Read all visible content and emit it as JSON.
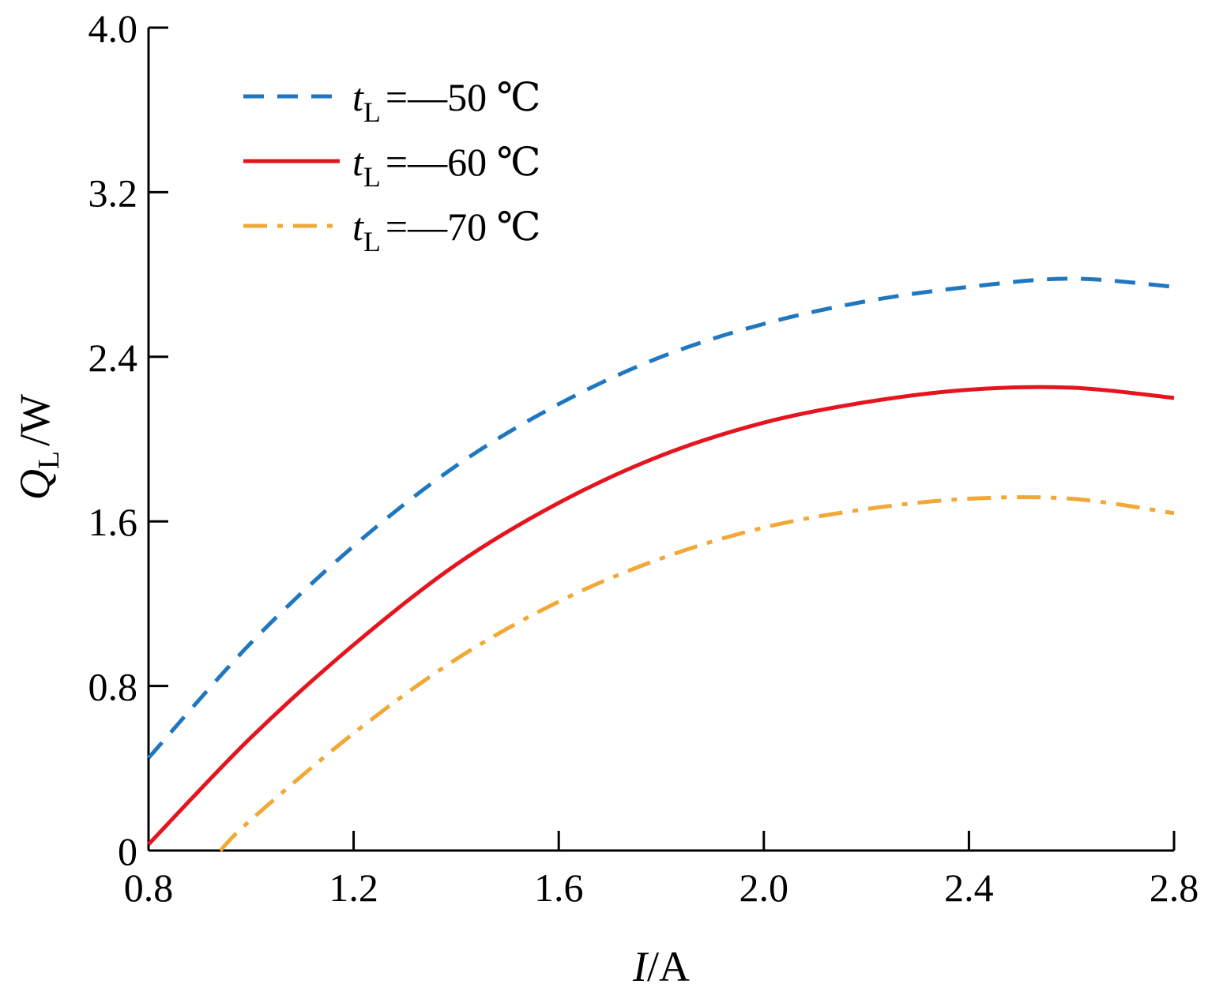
{
  "chart_data": {
    "type": "line",
    "title": "",
    "xlabel": {
      "var": "I",
      "unit": "A",
      "sep": "/"
    },
    "ylabel": {
      "var": "Q",
      "sub": "L",
      "unit": "W",
      "sep": "/"
    },
    "xlim": [
      0.8,
      2.8
    ],
    "ylim": [
      0,
      4.0
    ],
    "xticks": [
      0.8,
      1.2,
      1.6,
      2.0,
      2.4,
      2.8
    ],
    "xtick_labels": [
      "0.8",
      "1.2",
      "1.6",
      "2.0",
      "2.4",
      "2.8"
    ],
    "yticks": [
      0,
      0.8,
      1.6,
      2.4,
      3.2,
      4.0
    ],
    "ytick_labels": [
      "0",
      "0.8",
      "1.6",
      "2.4",
      "3.2",
      "4.0"
    ],
    "grid": false,
    "legend_position": "top-left",
    "series": [
      {
        "name": "tL = —50 ℃",
        "label_var": "t",
        "label_sub": "L",
        "label_rest": "=—50 ℃",
        "color": "#1f77c0",
        "style": "dashed",
        "x": [
          0.8,
          1.0,
          1.2,
          1.4,
          1.6,
          1.8,
          2.0,
          2.2,
          2.4,
          2.6,
          2.8
        ],
        "y": [
          0.45,
          1.01,
          1.48,
          1.87,
          2.17,
          2.4,
          2.56,
          2.67,
          2.74,
          2.78,
          2.74
        ]
      },
      {
        "name": "tL = —60 ℃",
        "label_var": "t",
        "label_sub": "L",
        "label_rest": "=—60 ℃",
        "color": "#e5151f",
        "style": "solid",
        "x": [
          0.8,
          1.0,
          1.2,
          1.4,
          1.6,
          1.8,
          2.0,
          2.2,
          2.4,
          2.6,
          2.8
        ],
        "y": [
          0.03,
          0.55,
          1.0,
          1.39,
          1.69,
          1.92,
          2.08,
          2.18,
          2.24,
          2.25,
          2.2
        ]
      },
      {
        "name": "tL = —70 ℃",
        "label_var": "t",
        "label_sub": "L",
        "label_rest": "=—70 ℃",
        "color": "#f2a836",
        "style": "dashdot",
        "x": [
          0.94,
          1.0,
          1.2,
          1.4,
          1.6,
          1.8,
          2.0,
          2.2,
          2.4,
          2.6,
          2.8
        ],
        "y": [
          0.0,
          0.15,
          0.57,
          0.93,
          1.21,
          1.42,
          1.57,
          1.66,
          1.71,
          1.71,
          1.64
        ]
      }
    ]
  }
}
